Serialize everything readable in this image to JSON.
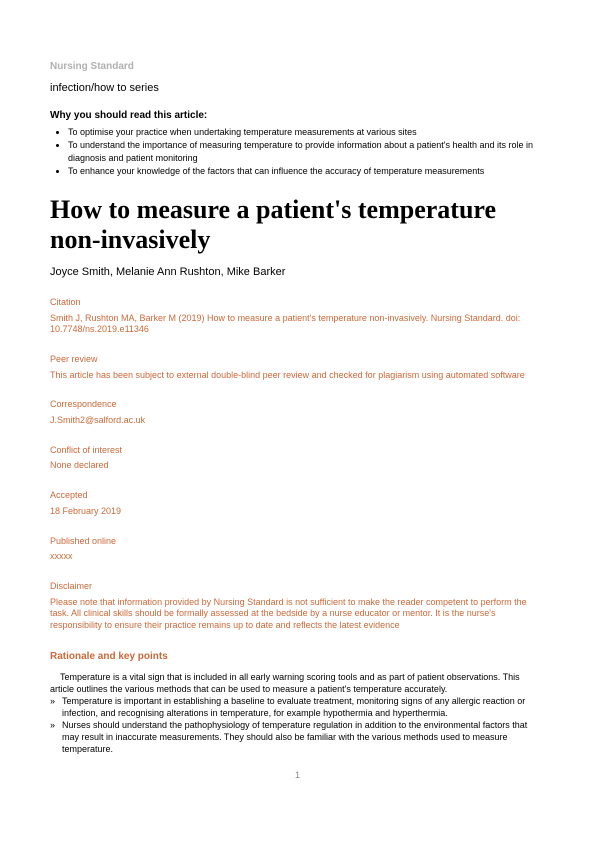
{
  "journal": "Nursing Standard",
  "section": "infection/how to series",
  "why": {
    "heading": "Why you should read this article:",
    "items": [
      "To optimise your practice when undertaking temperature measurements at various sites",
      "To understand the importance of measuring temperature to provide information about a patient's health and its role in diagnosis and patient monitoring",
      "To enhance your knowledge of the factors that can influence the accuracy of temperature measurements"
    ]
  },
  "title": "How to measure a patient's temperature non-invasively",
  "authors": "Joyce Smith, Melanie Ann Rushton, Mike Barker",
  "meta": {
    "citation_label": "Citation",
    "citation_text": "Smith J, Rushton MA, Barker M (2019) How to measure a patient's temperature non-invasively. Nursing Standard. doi: 10.7748/ns.2019.e11346",
    "peer_label": "Peer review",
    "peer_text": "This article has been subject to external double-blind peer review and checked for plagiarism using automated software",
    "corr_label": "Correspondence",
    "corr_text": "J.Smith2@salford.ac.uk",
    "conflict_label": "Conflict of interest",
    "conflict_text": "None declared",
    "accepted_label": "Accepted",
    "accepted_text": "18 February 2019",
    "published_label": "Published online",
    "published_text": "xxxxx",
    "disclaimer_label": "Disclaimer",
    "disclaimer_text": "Please note that information provided by Nursing Standard is not sufficient to make the reader competent to perform the task. All clinical skills should be formally assessed at the bedside by a nurse educator or mentor. It is the nurse's responsibility to ensure their practice remains up to date and reflects the latest evidence"
  },
  "rationale": {
    "heading": "Rationale and key points",
    "intro": "Temperature is a vital sign that is included in all early warning scoring tools and as part of patient observations. This article outlines the various methods that can be used to measure a patient's temperature accurately.",
    "bullets": [
      "Temperature is important in establishing a baseline to evaluate treatment, monitoring signs of any allergic reaction or infection, and recognising alterations in temperature, for example hypothermia and hyperthermia.",
      "Nurses should understand the pathophysiology of temperature regulation in addition to the environmental factors that may result in inaccurate measurements. They should also be familiar with the various methods used to measure temperature."
    ]
  },
  "page_number": "1",
  "colors": {
    "accent": "#c96a3a",
    "muted": "#b0b0b0",
    "text": "#000000",
    "background": "#ffffff"
  }
}
